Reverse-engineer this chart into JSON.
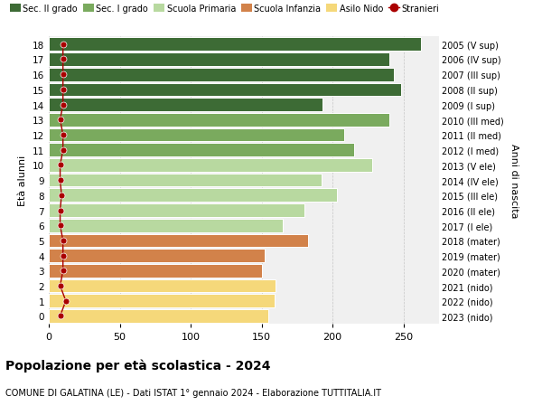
{
  "ages": [
    18,
    17,
    16,
    15,
    14,
    13,
    12,
    11,
    10,
    9,
    8,
    7,
    6,
    5,
    4,
    3,
    2,
    1,
    0
  ],
  "years": [
    "2005 (V sup)",
    "2006 (IV sup)",
    "2007 (III sup)",
    "2008 (II sup)",
    "2009 (I sup)",
    "2010 (III med)",
    "2011 (II med)",
    "2012 (I med)",
    "2013 (V ele)",
    "2014 (IV ele)",
    "2015 (III ele)",
    "2016 (II ele)",
    "2017 (I ele)",
    "2018 (mater)",
    "2019 (mater)",
    "2020 (mater)",
    "2021 (nido)",
    "2022 (nido)",
    "2023 (nido)"
  ],
  "bar_values": [
    262,
    240,
    243,
    248,
    193,
    240,
    208,
    215,
    228,
    192,
    203,
    180,
    165,
    183,
    152,
    150,
    160,
    159,
    155
  ],
  "stranieri_values": [
    10,
    10,
    10,
    10,
    10,
    8,
    10,
    10,
    8,
    8,
    9,
    8,
    8,
    10,
    10,
    10,
    8,
    12,
    8
  ],
  "bar_colors": {
    "sec2": "#3d6b35",
    "sec1": "#7aaa5e",
    "primaria": "#b8d9a0",
    "infanzia": "#d2824a",
    "nido": "#f5d87a"
  },
  "category_ranges": {
    "sec2": [
      14,
      18
    ],
    "sec1": [
      11,
      13
    ],
    "primaria": [
      6,
      10
    ],
    "infanzia": [
      3,
      5
    ],
    "nido": [
      0,
      2
    ]
  },
  "legend_labels": [
    "Sec. II grado",
    "Sec. I grado",
    "Scuola Primaria",
    "Scuola Infanzia",
    "Asilo Nido",
    "Stranieri"
  ],
  "legend_colors": [
    "#3d6b35",
    "#7aaa5e",
    "#b8d9a0",
    "#d2824a",
    "#f5d87a",
    "#aa0000"
  ],
  "ylabel_left": "Età alunni",
  "ylabel_right": "Anni di nascita",
  "title": "Popolazione per età scolastica - 2024",
  "subtitle": "COMUNE DI GALATINA (LE) - Dati ISTAT 1° gennaio 2024 - Elaborazione TUTTITALIA.IT",
  "xlim": [
    0,
    275
  ],
  "background_color": "#ffffff",
  "bar_bg_color": "#f0f0f0",
  "stranieri_color": "#aa0000",
  "stranieri_line_color": "#aa0000"
}
